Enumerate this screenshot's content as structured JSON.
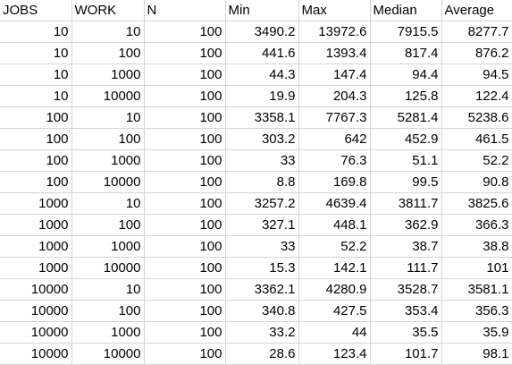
{
  "columns": [
    "JOBS",
    "WORK",
    "N",
    "Min",
    "Max",
    "Median",
    "Average"
  ],
  "rows": [
    [
      "10",
      "10",
      "100",
      "3490.2",
      "13972.6",
      "7915.5",
      "8277.7"
    ],
    [
      "10",
      "100",
      "100",
      "441.6",
      "1393.4",
      "817.4",
      "876.2"
    ],
    [
      "10",
      "1000",
      "100",
      "44.3",
      "147.4",
      "94.4",
      "94.5"
    ],
    [
      "10",
      "10000",
      "100",
      "19.9",
      "204.3",
      "125.8",
      "122.4"
    ],
    [
      "100",
      "10",
      "100",
      "3358.1",
      "7767.3",
      "5281.4",
      "5238.6"
    ],
    [
      "100",
      "100",
      "100",
      "303.2",
      "642",
      "452.9",
      "461.5"
    ],
    [
      "100",
      "1000",
      "100",
      "33",
      "76.3",
      "51.1",
      "52.2"
    ],
    [
      "100",
      "10000",
      "100",
      "8.8",
      "169.8",
      "99.5",
      "90.8"
    ],
    [
      "1000",
      "10",
      "100",
      "3257.2",
      "4639.4",
      "3811.7",
      "3825.6"
    ],
    [
      "1000",
      "100",
      "100",
      "327.1",
      "448.1",
      "362.9",
      "366.3"
    ],
    [
      "1000",
      "1000",
      "100",
      "33",
      "52.2",
      "38.7",
      "38.8"
    ],
    [
      "1000",
      "10000",
      "100",
      "15.3",
      "142.1",
      "111.7",
      "101"
    ],
    [
      "10000",
      "10",
      "100",
      "3362.1",
      "4280.9",
      "3528.7",
      "3581.1"
    ],
    [
      "10000",
      "100",
      "100",
      "340.8",
      "427.5",
      "353.4",
      "356.3"
    ],
    [
      "10000",
      "1000",
      "100",
      "33.2",
      "44",
      "35.5",
      "35.9"
    ],
    [
      "10000",
      "10000",
      "100",
      "28.6",
      "123.4",
      "101.7",
      "98.1"
    ]
  ]
}
